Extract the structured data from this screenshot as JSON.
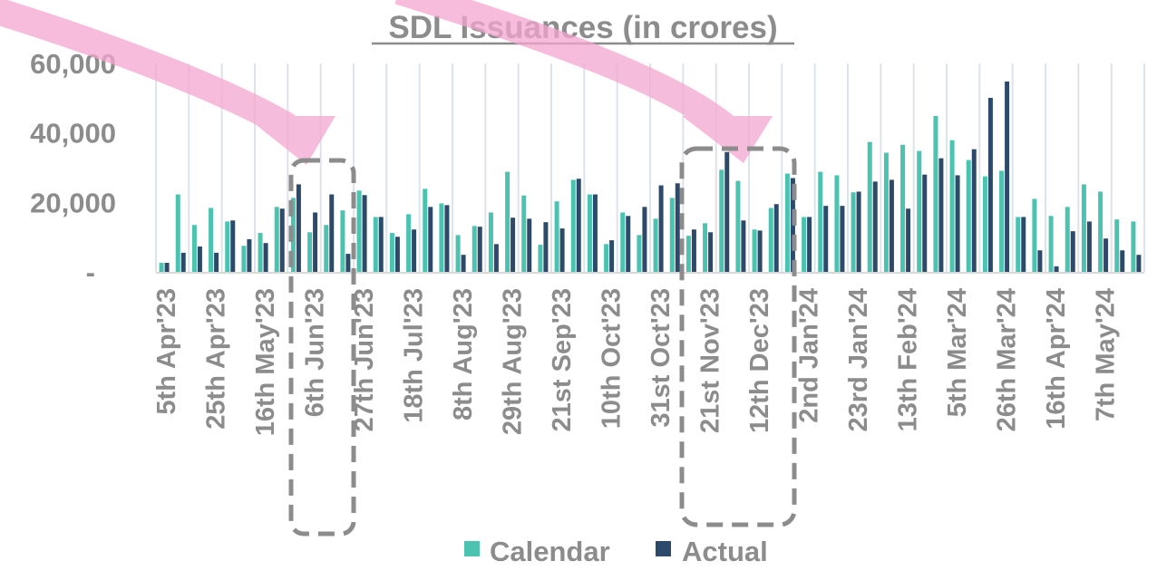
{
  "chart_data": {
    "type": "bar",
    "title": "SDL Issuances (in crores)",
    "xlabel": "",
    "ylabel": "",
    "ylim": [
      0,
      60000
    ],
    "y_tick_labels": [
      "-",
      "20,000",
      "40,000",
      "60,000"
    ],
    "y_ticks": [
      0,
      20000,
      40000,
      60000
    ],
    "x_tick_labels": [
      "5th Apr'23",
      "25th Apr'23",
      "16th May'23",
      "6th Jun'23",
      "27th Jun'23",
      "18th Jul'23",
      "8th Aug'23",
      "29th Aug'23",
      "21st Sep'23",
      "10th Oct'23",
      "31st Oct'23",
      "21st Nov'23",
      "12th Dec'23",
      "2nd Jan'24",
      "23rd Jan'24",
      "13th Feb'24",
      "5th Mar'24",
      "26th Mar'24",
      "16th Apr'24",
      "7th May'24"
    ],
    "x_tick_every": 3,
    "grid": "vertical",
    "legend": "bottom",
    "series": [
      {
        "name": "Calendar",
        "color": "#4cc3b0",
        "values": [
          2600,
          22300,
          13500,
          18400,
          14500,
          7500,
          11200,
          18700,
          21300,
          11400,
          13500,
          17700,
          23400,
          15800,
          11200,
          16600,
          23900,
          19700,
          10600,
          13200,
          17100,
          28800,
          22000,
          7800,
          20300,
          26500,
          22300,
          8000,
          17100,
          10600,
          15300,
          21300,
          10400,
          14000,
          29400,
          26200,
          12200,
          18400,
          28300,
          15800,
          28800,
          27800,
          22900,
          37400,
          34300,
          36600,
          34800,
          44900,
          37900,
          32200,
          27500,
          29100,
          15800,
          21000,
          16100,
          18700,
          25200,
          23100,
          15100,
          14500
        ]
      },
      {
        "name": "Actual",
        "color": "#2e4a6b",
        "values": [
          2600,
          5500,
          7300,
          5500,
          14800,
          9400,
          8300,
          18200,
          25200,
          17100,
          22300,
          5200,
          22100,
          15800,
          10100,
          12200,
          18700,
          19200,
          4900,
          13000,
          8000,
          15600,
          15300,
          14300,
          12500,
          26800,
          22300,
          9100,
          16100,
          18700,
          24900,
          25500,
          12200,
          11400,
          34500,
          14800,
          11900,
          19500,
          27000,
          15800,
          19000,
          19000,
          23100,
          26000,
          26500,
          18200,
          28000,
          32700,
          27800,
          35300,
          50100,
          54800,
          15800,
          6200,
          1600,
          11700,
          14500,
          9600,
          6200,
          4900
        ]
      }
    ],
    "annotations": {
      "arrow_color": "#f4a6cf",
      "box_color": "#8c8c8c"
    }
  }
}
